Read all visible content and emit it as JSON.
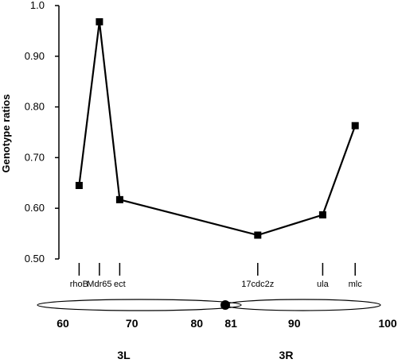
{
  "chart_data": {
    "type": "line",
    "ylabel": "Genotype ratios",
    "ylim": [
      0.5,
      1.0
    ],
    "ytick_labels": [
      "0.50",
      "0.60",
      "0.70",
      "0.80",
      "0.90",
      "1.0"
    ],
    "yticks": [
      0.5,
      0.6,
      0.7,
      0.8,
      0.9,
      1.0
    ],
    "xlim": [
      60,
      100
    ],
    "series": [
      {
        "markers": [
          "rhoB",
          "Mdr65",
          "ect",
          "17cdc2z",
          "ula",
          "mlc"
        ],
        "x": [
          62,
          64.5,
          67,
          84,
          92,
          96
        ],
        "values": [
          0.645,
          0.968,
          0.617,
          0.547,
          0.587,
          0.763
        ]
      }
    ],
    "map": {
      "positions": [
        {
          "label": "60",
          "value": 60
        },
        {
          "label": "70",
          "value": 68.5
        },
        {
          "label": "80",
          "value": 76.5
        },
        {
          "label": "81",
          "value": 80.7
        },
        {
          "label": "90",
          "value": 88.5
        },
        {
          "label": "100",
          "value": 100
        }
      ],
      "arms": [
        {
          "label": "3L",
          "value": 67.5
        },
        {
          "label": "3R",
          "value": 87.5
        }
      ]
    }
  }
}
